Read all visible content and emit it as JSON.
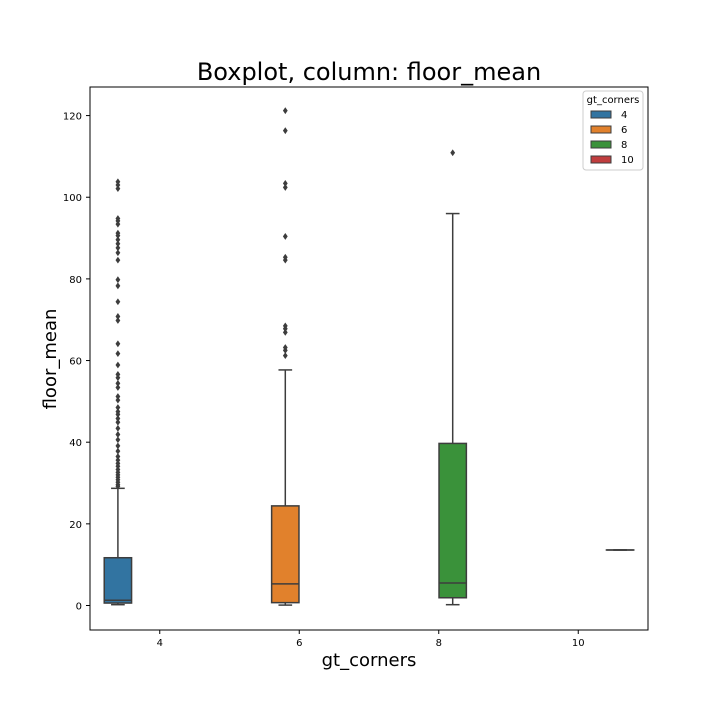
{
  "chart_data": {
    "type": "boxplot",
    "title": "Boxplot, column: floor_mean",
    "xlabel": "gt_corners",
    "ylabel": "floor_mean",
    "categories": [
      "4",
      "6",
      "8",
      "10"
    ],
    "ylim": [
      -6,
      127
    ],
    "yticks": [
      0,
      20,
      40,
      60,
      80,
      100,
      120
    ],
    "grid": false,
    "legend": {
      "title": "gt_corners",
      "placement": "top-right"
    },
    "series": [
      {
        "name": "4",
        "color": "#3274a1",
        "category": "4",
        "whisker_low": 0.2,
        "q1": 0.6,
        "median": 1.3,
        "q3": 11.7,
        "whisker_high": 28.7,
        "outliers": [
          29.2,
          29.6,
          30.2,
          30.8,
          31.4,
          32.0,
          32.6,
          33.3,
          34.1,
          34.8,
          35.6,
          36.5,
          37.8,
          39.1,
          40.6,
          41.9,
          43.4,
          44.9,
          45.8,
          46.8,
          47.5,
          48.5,
          50.3,
          51.2,
          53.4,
          54.4,
          55.8,
          56.6,
          58.9,
          61.7,
          64.1,
          69.8,
          70.8,
          74.4,
          78.3,
          79.8,
          84.6,
          86.4,
          87.6,
          88.6,
          89.6,
          90.6,
          91.2,
          93.4,
          94.2,
          94.8,
          102.1,
          103.0,
          103.8
        ]
      },
      {
        "name": "6",
        "color": "#e1812c",
        "category": "6",
        "whisker_low": 0.1,
        "q1": 0.7,
        "median": 5.3,
        "q3": 24.4,
        "whisker_high": 57.7,
        "outliers": [
          61.2,
          62.5,
          63.2,
          66.9,
          67.8,
          68.5,
          84.6,
          85.3,
          90.4,
          102.4,
          103.4,
          116.3,
          121.2
        ]
      },
      {
        "name": "8",
        "color": "#3a923a",
        "category": "8",
        "whisker_low": 0.2,
        "q1": 1.9,
        "median": 5.5,
        "q3": 39.7,
        "whisker_high": 96.0,
        "outliers": [
          110.9
        ]
      },
      {
        "name": "10",
        "color": "#c03d3e",
        "category": "10",
        "whisker_low": 13.6,
        "q1": 13.6,
        "median": 13.6,
        "q3": 13.6,
        "whisker_high": 13.6,
        "outliers": []
      }
    ]
  }
}
